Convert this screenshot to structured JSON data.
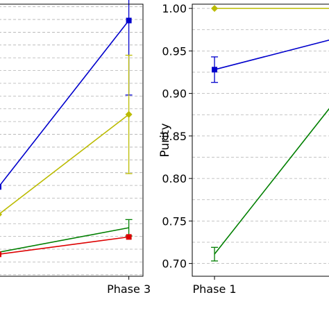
{
  "chart_data": [
    {
      "type": "line",
      "title": "",
      "xlabel": "",
      "ylabel": "",
      "categories": [
        "Phase 3"
      ],
      "grid": "y-dashed",
      "legend": "none",
      "series": [
        {
          "color": "#0000cc",
          "marker": "square",
          "points": [
            {
              "x": 1.62,
              "y": 0.811,
              "err": null
            },
            {
              "x": 3,
              "y": 0.974,
              "err": 0.073
            }
          ]
        },
        {
          "color": "#bbbb00",
          "marker": "diamond",
          "points": [
            {
              "x": 1.62,
              "y": 0.784,
              "err": null
            },
            {
              "x": 3,
              "y": 0.882,
              "err": 0.058
            }
          ]
        },
        {
          "color": "#007f00",
          "marker": "none",
          "points": [
            {
              "x": 1.62,
              "y": 0.747,
              "err": null
            },
            {
              "x": 3,
              "y": 0.771,
              "err": 0.008
            }
          ]
        },
        {
          "color": "#dd0000",
          "marker": "square",
          "points": [
            {
              "x": 1.62,
              "y": 0.745,
              "err": null
            },
            {
              "x": 3,
              "y": 0.762,
              "err": 0.0
            }
          ]
        }
      ]
    },
    {
      "type": "line",
      "title": "",
      "xlabel": "",
      "ylabel": "Purity",
      "categories": [
        "Phase 1"
      ],
      "ylim": [
        0.685,
        1.005
      ],
      "yticks": [
        "1.00",
        "0.95",
        "0.90",
        "0.85",
        "0.80",
        "0.75",
        "0.70"
      ],
      "grid": "y-dashed",
      "legend": "none",
      "series": [
        {
          "color": "#bbbb00",
          "marker": "diamond",
          "points": [
            {
              "x": 1,
              "y": 1.0,
              "err": 0.0
            },
            {
              "x": 1.64,
              "y": 1.0,
              "err": null
            }
          ]
        },
        {
          "color": "#0000cc",
          "marker": "square",
          "points": [
            {
              "x": 1,
              "y": 0.928,
              "err": 0.015
            },
            {
              "x": 1.64,
              "y": 0.964,
              "err": null
            }
          ]
        },
        {
          "color": "#007f00",
          "marker": "none",
          "points": [
            {
              "x": 1,
              "y": 0.711,
              "err": 0.008
            },
            {
              "x": 1.64,
              "y": 0.888,
              "err": null
            }
          ]
        }
      ]
    }
  ]
}
